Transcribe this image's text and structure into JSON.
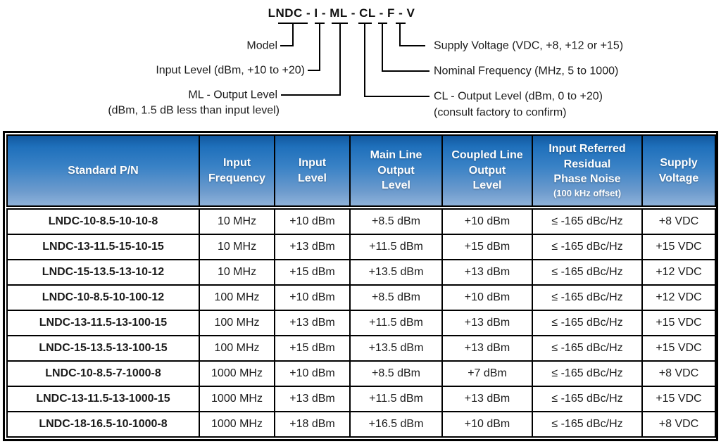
{
  "diagram": {
    "title": "LNDC - I - ML - CL - F - V",
    "labels": {
      "model": "Model",
      "input_level": "Input Level (dBm, +10 to +20)",
      "ml_output_line1": "ML - Output Level",
      "ml_output_line2": "(dBm, 1.5 dB less than input level)",
      "supply_voltage": "Supply Voltage (VDC, +8, +12 or +15)",
      "nominal_frequency": "Nominal Frequency (MHz, 5 to 1000)",
      "cl_output_line1": "CL - Output Level (dBm, 0 to +20)",
      "cl_output_line2": "(consult factory to confirm)"
    }
  },
  "table": {
    "headers": [
      {
        "id": "standard-pn",
        "main": "Standard P/N",
        "sub": ""
      },
      {
        "id": "input-frequency",
        "main": "Input\nFrequency",
        "sub": ""
      },
      {
        "id": "input-level",
        "main": "Input\nLevel",
        "sub": ""
      },
      {
        "id": "main-line-output-level",
        "main": "Main Line\nOutput\nLevel",
        "sub": ""
      },
      {
        "id": "coupled-line-output-level",
        "main": "Coupled Line\nOutput\nLevel",
        "sub": ""
      },
      {
        "id": "phase-noise",
        "main": "Input Referred\nResidual\nPhase Noise",
        "sub": "(100 kHz offset)"
      },
      {
        "id": "supply-voltage",
        "main": "Supply\nVoltage",
        "sub": ""
      }
    ],
    "rows": [
      {
        "pn": "LNDC-10-8.5-10-10-8",
        "input_frequency": "10 MHz",
        "input_level": "+10 dBm",
        "main_line_output_level": "+8.5 dBm",
        "coupled_line_output_level": "+10 dBm",
        "phase_noise": "≤ -165 dBc/Hz",
        "supply_voltage": "+8 VDC"
      },
      {
        "pn": "LNDC-13-11.5-15-10-15",
        "input_frequency": "10 MHz",
        "input_level": "+13 dBm",
        "main_line_output_level": "+11.5 dBm",
        "coupled_line_output_level": "+15 dBm",
        "phase_noise": "≤ -165 dBc/Hz",
        "supply_voltage": "+15 VDC"
      },
      {
        "pn": "LNDC-15-13.5-13-10-12",
        "input_frequency": "10 MHz",
        "input_level": "+15 dBm",
        "main_line_output_level": "+13.5 dBm",
        "coupled_line_output_level": "+13 dBm",
        "phase_noise": "≤ -165 dBc/Hz",
        "supply_voltage": "+12 VDC"
      },
      {
        "pn": "LNDC-10-8.5-10-100-12",
        "input_frequency": "100 MHz",
        "input_level": "+10 dBm",
        "main_line_output_level": "+8.5 dBm",
        "coupled_line_output_level": "+10 dBm",
        "phase_noise": "≤ -165 dBc/Hz",
        "supply_voltage": "+12 VDC"
      },
      {
        "pn": "LNDC-13-11.5-13-100-15",
        "input_frequency": "100 MHz",
        "input_level": "+13 dBm",
        "main_line_output_level": "+11.5 dBm",
        "coupled_line_output_level": "+13 dBm",
        "phase_noise": "≤ -165 dBc/Hz",
        "supply_voltage": "+15 VDC"
      },
      {
        "pn": "LNDC-15-13.5-13-100-15",
        "input_frequency": "100 MHz",
        "input_level": "+15 dBm",
        "main_line_output_level": "+13.5 dBm",
        "coupled_line_output_level": "+13 dBm",
        "phase_noise": "≤ -165 dBc/Hz",
        "supply_voltage": "+15 VDC"
      },
      {
        "pn": "LNDC-10-8.5-7-1000-8",
        "input_frequency": "1000 MHz",
        "input_level": "+10 dBm",
        "main_line_output_level": "+8.5 dBm",
        "coupled_line_output_level": "+7 dBm",
        "phase_noise": "≤ -165 dBc/Hz",
        "supply_voltage": "+8 VDC"
      },
      {
        "pn": "LNDC-13-11.5-13-1000-15",
        "input_frequency": "1000 MHz",
        "input_level": "+13 dBm",
        "main_line_output_level": "+11.5 dBm",
        "coupled_line_output_level": "+13 dBm",
        "phase_noise": "≤ -165 dBc/Hz",
        "supply_voltage": "+15 VDC"
      },
      {
        "pn": "LNDC-18-16.5-10-1000-8",
        "input_frequency": "1000 MHz",
        "input_level": "+18 dBm",
        "main_line_output_level": "+16.5 dBm",
        "coupled_line_output_level": "+10 dBm",
        "phase_noise": "≤ -165 dBc/Hz",
        "supply_voltage": "+8 VDC"
      }
    ]
  },
  "colors": {
    "header_gradient_top": "#12589f",
    "header_gradient_bottom": "#8fb2da",
    "header_text": "#ffffff",
    "table_border": "#000000",
    "body_text": "#1b1b1b"
  }
}
